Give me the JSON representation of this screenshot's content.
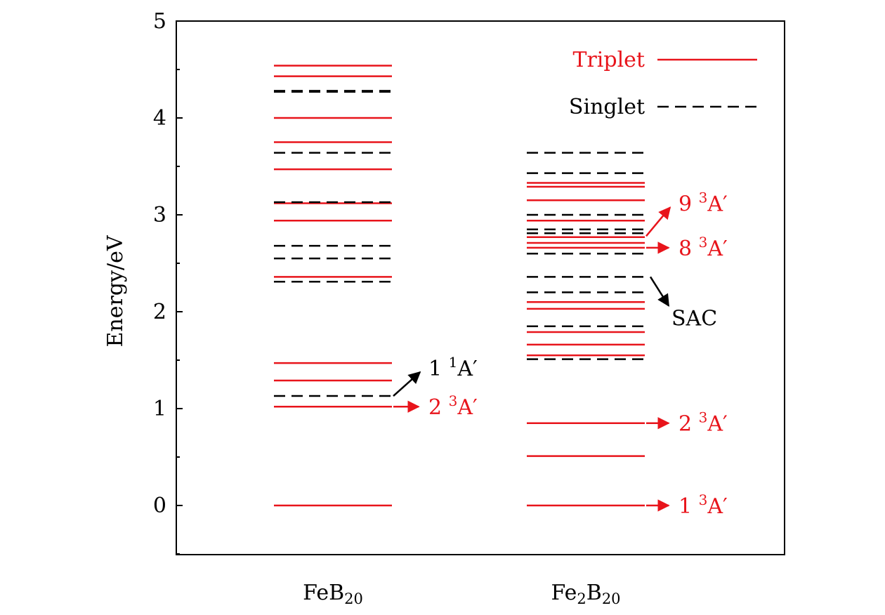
{
  "chart_data": {
    "type": "energy_level_diagram",
    "ylabel": "Energy/eV",
    "ylim": [
      -0.5,
      5
    ],
    "y_ticks": [
      0,
      1,
      2,
      3,
      4,
      5
    ],
    "y_tick_labels": [
      "0",
      "1",
      "2",
      "3",
      "4",
      "5"
    ],
    "colors": {
      "triplet": "#e8141b",
      "singlet": "#000000"
    },
    "legend": {
      "placement": "top-right",
      "entries": [
        {
          "label": "Triplet",
          "style": "solid",
          "color": "#e8141b"
        },
        {
          "label": "Singlet",
          "style": "dashed",
          "color": "#000000"
        }
      ]
    },
    "categories": [
      {
        "base": "FeB",
        "sub": "20"
      },
      {
        "pre": "Fe",
        "pre_sub": "2",
        "base": "B",
        "sub": "20"
      }
    ],
    "levels": [
      [
        {
          "e": 0.0,
          "type": "triplet"
        },
        {
          "e": 1.02,
          "type": "triplet"
        },
        {
          "e": 1.13,
          "type": "singlet"
        },
        {
          "e": 1.29,
          "type": "triplet"
        },
        {
          "e": 1.47,
          "type": "triplet"
        },
        {
          "e": 2.31,
          "type": "singlet"
        },
        {
          "e": 2.36,
          "type": "triplet"
        },
        {
          "e": 2.55,
          "type": "singlet"
        },
        {
          "e": 2.68,
          "type": "singlet"
        },
        {
          "e": 2.94,
          "type": "triplet"
        },
        {
          "e": 3.12,
          "type": "triplet"
        },
        {
          "e": 3.13,
          "type": "singlet"
        },
        {
          "e": 3.47,
          "type": "triplet"
        },
        {
          "e": 3.64,
          "type": "singlet"
        },
        {
          "e": 3.75,
          "type": "triplet"
        },
        {
          "e": 4.0,
          "type": "triplet"
        },
        {
          "e": 4.27,
          "type": "singlet"
        },
        {
          "e": 4.28,
          "type": "singlet"
        },
        {
          "e": 4.43,
          "type": "triplet"
        },
        {
          "e": 4.54,
          "type": "triplet"
        }
      ],
      [
        {
          "e": 0.0,
          "type": "triplet"
        },
        {
          "e": 0.51,
          "type": "triplet"
        },
        {
          "e": 0.85,
          "type": "triplet"
        },
        {
          "e": 1.51,
          "type": "singlet"
        },
        {
          "e": 1.55,
          "type": "triplet"
        },
        {
          "e": 1.66,
          "type": "triplet"
        },
        {
          "e": 1.79,
          "type": "triplet"
        },
        {
          "e": 1.85,
          "type": "singlet"
        },
        {
          "e": 2.03,
          "type": "triplet"
        },
        {
          "e": 2.1,
          "type": "triplet"
        },
        {
          "e": 2.2,
          "type": "singlet"
        },
        {
          "e": 2.36,
          "type": "singlet"
        },
        {
          "e": 2.6,
          "type": "singlet"
        },
        {
          "e": 2.66,
          "type": "triplet"
        },
        {
          "e": 2.71,
          "type": "triplet"
        },
        {
          "e": 2.77,
          "type": "triplet"
        },
        {
          "e": 2.81,
          "type": "singlet"
        },
        {
          "e": 2.85,
          "type": "singlet"
        },
        {
          "e": 2.94,
          "type": "triplet"
        },
        {
          "e": 3.0,
          "type": "singlet"
        },
        {
          "e": 3.15,
          "type": "triplet"
        },
        {
          "e": 3.29,
          "type": "triplet"
        },
        {
          "e": 3.33,
          "type": "triplet"
        },
        {
          "e": 3.43,
          "type": "singlet"
        },
        {
          "e": 3.64,
          "type": "singlet"
        }
      ]
    ],
    "annotations": [
      {
        "category": 0,
        "level_e": 1.13,
        "text_e": 1.42,
        "num": "1",
        "sup": "1",
        "sym": "A′",
        "color": "#000000",
        "arrow": "up"
      },
      {
        "category": 0,
        "level_e": 1.02,
        "text_e": 1.02,
        "num": "2",
        "sup": "3",
        "sym": "A′",
        "color": "#e8141b",
        "arrow": "right"
      },
      {
        "category": 1,
        "level_e": 2.78,
        "text_e": 3.12,
        "num": "9",
        "sup": "3",
        "sym": "A′",
        "color": "#e8141b",
        "arrow": "up"
      },
      {
        "category": 1,
        "level_e": 2.66,
        "text_e": 2.66,
        "num": "8",
        "sup": "3",
        "sym": "A′",
        "color": "#e8141b",
        "arrow": "right"
      },
      {
        "category": 1,
        "level_e": 2.36,
        "text_e": 1.96,
        "text": "SAC",
        "color": "#000000",
        "arrow": "down"
      },
      {
        "category": 1,
        "level_e": 0.85,
        "text_e": 0.85,
        "num": "2",
        "sup": "3",
        "sym": "A′",
        "color": "#e8141b",
        "arrow": "right"
      },
      {
        "category": 1,
        "level_e": 0.0,
        "text_e": 0.0,
        "num": "1",
        "sup": "3",
        "sym": "A′",
        "color": "#e8141b",
        "arrow": "right"
      }
    ]
  }
}
